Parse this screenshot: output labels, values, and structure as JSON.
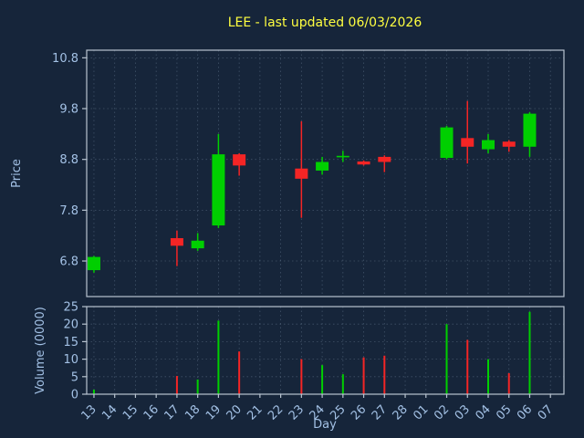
{
  "chart_data": {
    "type": "candlestick",
    "title": "LEE - last updated 06/03/2026",
    "xlabel": "Day",
    "price_axis": {
      "label": "Price",
      "ticks": [
        "6.8",
        "7.8",
        "8.8",
        "9.8",
        "10.8"
      ],
      "range": [
        6.1,
        10.95
      ]
    },
    "volume_axis": {
      "label": "Volume (0000)",
      "ticks": [
        "0",
        "5",
        "10",
        "15",
        "20",
        "25"
      ],
      "range": [
        0,
        25
      ]
    },
    "categories": [
      "13",
      "14",
      "15",
      "16",
      "17",
      "18",
      "19",
      "20",
      "21",
      "22",
      "23",
      "24",
      "25",
      "26",
      "27",
      "28",
      "01",
      "02",
      "03",
      "04",
      "05",
      "06",
      "07"
    ],
    "grid": true,
    "legend": false,
    "colors": {
      "up": "#00cf00",
      "down": "#f42525",
      "background": "#16253a",
      "grid": "#8fa5bd",
      "axis_text": "#a3c1e5",
      "title": "#ffff40",
      "spine": "#b8c4d0"
    },
    "candles": [
      {
        "day": "13",
        "open": 6.62,
        "high": 6.9,
        "low": 6.57,
        "close": 6.88,
        "volume": 1.3
      },
      {
        "day": "17",
        "open": 7.25,
        "high": 7.4,
        "low": 6.7,
        "close": 7.1,
        "volume": 5.2
      },
      {
        "day": "18",
        "open": 7.05,
        "high": 7.35,
        "low": 7.0,
        "close": 7.2,
        "volume": 4.2
      },
      {
        "day": "19",
        "open": 7.5,
        "high": 9.3,
        "low": 7.45,
        "close": 8.9,
        "volume": 21.0
      },
      {
        "day": "20",
        "open": 8.9,
        "high": 8.92,
        "low": 8.48,
        "close": 8.68,
        "volume": 12.2
      },
      {
        "day": "23",
        "open": 8.62,
        "high": 9.55,
        "low": 7.65,
        "close": 8.42,
        "volume": 10.0
      },
      {
        "day": "24",
        "open": 8.58,
        "high": 8.85,
        "low": 8.5,
        "close": 8.75,
        "volume": 8.3
      },
      {
        "day": "25",
        "open": 8.85,
        "high": 8.97,
        "low": 8.75,
        "close": 8.87,
        "volume": 5.7
      },
      {
        "day": "26",
        "open": 8.76,
        "high": 8.78,
        "low": 8.68,
        "close": 8.7,
        "volume": 10.5
      },
      {
        "day": "27",
        "open": 8.85,
        "high": 8.88,
        "low": 8.55,
        "close": 8.75,
        "volume": 11.0
      },
      {
        "day": "02",
        "open": 8.83,
        "high": 9.46,
        "low": 8.8,
        "close": 9.43,
        "volume": 20.0
      },
      {
        "day": "03",
        "open": 9.22,
        "high": 9.95,
        "low": 8.72,
        "close": 9.05,
        "volume": 15.5
      },
      {
        "day": "04",
        "open": 9.0,
        "high": 9.3,
        "low": 8.92,
        "close": 9.18,
        "volume": 10.0
      },
      {
        "day": "05",
        "open": 9.15,
        "high": 9.18,
        "low": 8.95,
        "close": 9.05,
        "volume": 6.0
      },
      {
        "day": "06",
        "open": 9.05,
        "high": 9.73,
        "low": 8.85,
        "close": 9.7,
        "volume": 23.5
      }
    ]
  }
}
